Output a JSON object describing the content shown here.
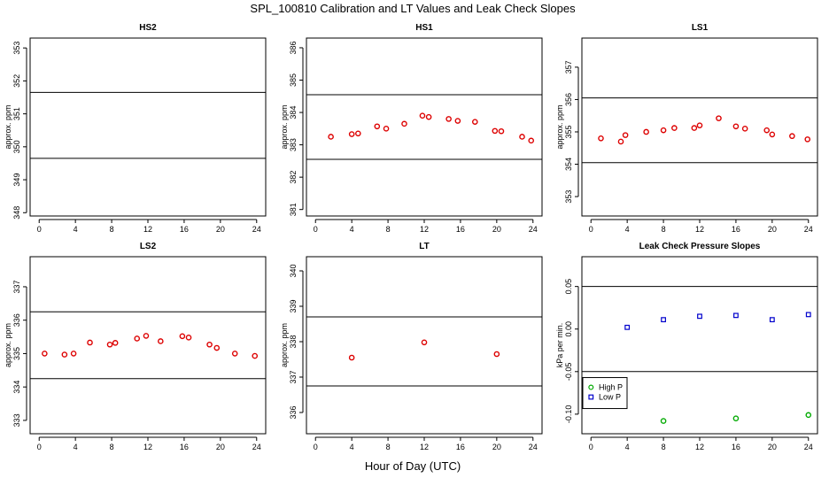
{
  "title": "SPL_100810  Calibration and LT Values and Leak Check Slopes",
  "xlabel": "Hour of Day (UTC)",
  "chart_data": [
    {
      "id": "hs2",
      "type": "scatter",
      "title": "HS2",
      "ylabel": "approx. ppm",
      "xlim": [
        -1,
        25
      ],
      "ylim": [
        347.9,
        353.3
      ],
      "xticks": [
        0,
        4,
        8,
        12,
        16,
        20,
        24
      ],
      "yticks": [
        348,
        349,
        350,
        351,
        352,
        353
      ],
      "hlines": [
        351.65,
        349.65
      ],
      "series": []
    },
    {
      "id": "hs1",
      "type": "scatter",
      "title": "HS1",
      "ylabel": "approx. ppm",
      "xlim": [
        -1,
        25
      ],
      "ylim": [
        380.8,
        386.3
      ],
      "xticks": [
        0,
        4,
        8,
        12,
        16,
        20,
        24
      ],
      "yticks": [
        381,
        382,
        383,
        384,
        385,
        386
      ],
      "hlines": [
        384.55,
        382.55
      ],
      "series": [
        {
          "name": "Calibration",
          "color": "#dd0000",
          "symbol": "circle",
          "x": [
            1.7,
            4.0,
            4.7,
            6.8,
            7.8,
            9.8,
            11.8,
            12.5,
            14.7,
            15.7,
            17.6,
            19.8,
            20.5,
            22.8,
            23.8
          ],
          "y": [
            383.25,
            383.33,
            383.35,
            383.57,
            383.5,
            383.65,
            383.9,
            383.86,
            383.8,
            383.74,
            383.71,
            383.43,
            383.42,
            383.25,
            383.13
          ]
        }
      ]
    },
    {
      "id": "ls1",
      "type": "scatter",
      "title": "LS1",
      "ylabel": "approx. ppm",
      "xlim": [
        -1,
        25
      ],
      "ylim": [
        352.4,
        357.9
      ],
      "xticks": [
        0,
        4,
        8,
        12,
        16,
        20,
        24
      ],
      "yticks": [
        353,
        354,
        355,
        356,
        357
      ],
      "hlines": [
        356.05,
        354.05
      ],
      "series": [
        {
          "name": "Calibration",
          "color": "#dd0000",
          "symbol": "circle",
          "x": [
            1.1,
            3.3,
            3.8,
            6.1,
            8.0,
            9.2,
            11.4,
            12.0,
            14.1,
            16.0,
            17.0,
            19.4,
            20.0,
            22.2,
            23.9
          ],
          "y": [
            354.8,
            354.7,
            354.9,
            355.0,
            355.05,
            355.12,
            355.12,
            355.2,
            355.42,
            355.17,
            355.1,
            355.05,
            354.92,
            354.87,
            354.77
          ]
        }
      ]
    },
    {
      "id": "ls2",
      "type": "scatter",
      "title": "LS2",
      "ylabel": "approx. ppm",
      "xlim": [
        -1,
        25
      ],
      "ylim": [
        332.6,
        337.9
      ],
      "xticks": [
        0,
        4,
        8,
        12,
        16,
        20,
        24
      ],
      "yticks": [
        333,
        334,
        335,
        336,
        337
      ],
      "hlines": [
        336.25,
        334.25
      ],
      "series": [
        {
          "name": "Calibration",
          "color": "#dd0000",
          "symbol": "circle",
          "x": [
            0.6,
            2.8,
            3.8,
            5.6,
            7.8,
            8.4,
            10.8,
            11.8,
            13.4,
            15.8,
            16.5,
            18.8,
            19.6,
            21.6,
            23.8
          ],
          "y": [
            335.0,
            334.97,
            335.0,
            335.33,
            335.27,
            335.32,
            335.45,
            335.53,
            335.37,
            335.52,
            335.48,
            335.27,
            335.17,
            335.0,
            334.93
          ]
        }
      ]
    },
    {
      "id": "lt",
      "type": "scatter",
      "title": "LT",
      "ylabel": "approx. ppm",
      "xlim": [
        -1,
        25
      ],
      "ylim": [
        335.4,
        340.4
      ],
      "xticks": [
        0,
        4,
        8,
        12,
        16,
        20,
        24
      ],
      "yticks": [
        336,
        337,
        338,
        339,
        340
      ],
      "hlines": [
        338.7,
        336.75
      ],
      "series": [
        {
          "name": "LT",
          "color": "#dd0000",
          "symbol": "circle",
          "x": [
            4.0,
            12.0,
            20.0
          ],
          "y": [
            337.55,
            337.98,
            337.65
          ]
        }
      ]
    },
    {
      "id": "leak",
      "type": "scatter",
      "title": "Leak Check Pressure Slopes",
      "ylabel": "kPa per min.",
      "xlim": [
        -1,
        25
      ],
      "ylim": [
        -0.123,
        0.085
      ],
      "xticks": [
        0,
        4,
        8,
        12,
        16,
        20,
        24
      ],
      "yticks": [
        -0.1,
        -0.05,
        0.0,
        0.05
      ],
      "ytick_labels": [
        "-0.10",
        "-0.05",
        "0.00",
        "0.05"
      ],
      "hlines": [
        0.05,
        -0.05
      ],
      "legend": {
        "placement": "bottom-left",
        "entries": [
          "High P",
          "Low P"
        ]
      },
      "series": [
        {
          "name": "High P",
          "color": "#00aa00",
          "symbol": "circle",
          "x": [
            8,
            16,
            24
          ],
          "y": [
            -0.108,
            -0.105,
            -0.101
          ]
        },
        {
          "name": "Low P",
          "color": "#0000cc",
          "symbol": "square",
          "x": [
            4,
            8,
            12,
            16,
            20,
            24
          ],
          "y": [
            0.002,
            0.011,
            0.015,
            0.016,
            0.011,
            0.017
          ]
        }
      ]
    }
  ]
}
